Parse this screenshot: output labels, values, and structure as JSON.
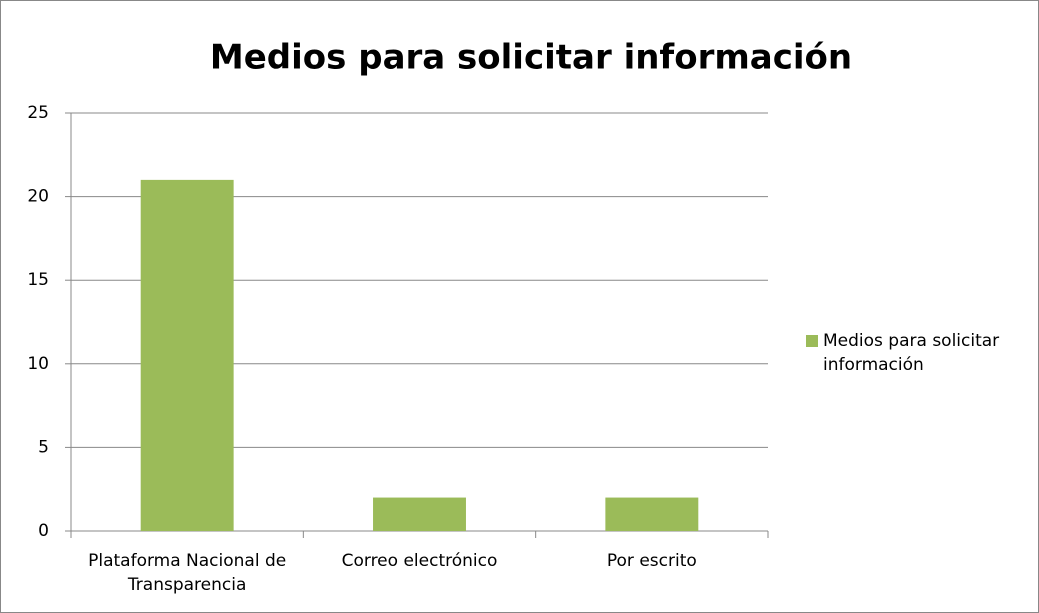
{
  "chart_data": {
    "type": "bar",
    "title": "Medios para solicitar información",
    "categories": [
      "Plataforma Nacional de Transparencia",
      "Correo electrónico",
      "Por escrito"
    ],
    "series": [
      {
        "name": "Medios para solicitar información",
        "color": "#9bbb59",
        "values": [
          21,
          2,
          2
        ]
      }
    ],
    "ylim": [
      0,
      25
    ],
    "yticks": [
      0,
      5,
      10,
      15,
      20,
      25
    ],
    "grid": true,
    "legend": "right"
  }
}
